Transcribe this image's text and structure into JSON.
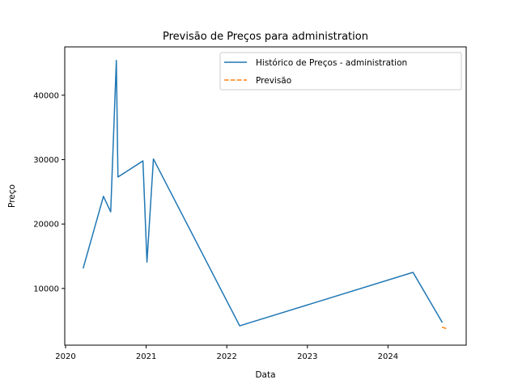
{
  "chart_data": {
    "type": "line",
    "title": "Previsão de Preços para administration",
    "xlabel": "Data",
    "ylabel": "Preço",
    "xlim": [
      2019.99,
      2024.97
    ],
    "ylim": [
      1200,
      47500
    ],
    "x_ticks": [
      {
        "value": 2020,
        "label": "2020"
      },
      {
        "value": 2021,
        "label": "2021"
      },
      {
        "value": 2022,
        "label": "2022"
      },
      {
        "value": 2023,
        "label": "2023"
      },
      {
        "value": 2024,
        "label": "2024"
      }
    ],
    "y_ticks": [
      {
        "value": 10000,
        "label": "10000"
      },
      {
        "value": 20000,
        "label": "20000"
      },
      {
        "value": 30000,
        "label": "30000"
      },
      {
        "value": 40000,
        "label": "40000"
      }
    ],
    "grid": false,
    "legend_position": "top-right",
    "series": [
      {
        "name": "Histórico de Preços - administration",
        "color": "#1f77b4",
        "style": "solid",
        "points": [
          {
            "x": 2020.22,
            "y": 13200
          },
          {
            "x": 2020.47,
            "y": 24300
          },
          {
            "x": 2020.56,
            "y": 21900
          },
          {
            "x": 2020.63,
            "y": 45400
          },
          {
            "x": 2020.65,
            "y": 27300
          },
          {
            "x": 2020.96,
            "y": 29800
          },
          {
            "x": 2021.01,
            "y": 14100
          },
          {
            "x": 2021.09,
            "y": 30100
          },
          {
            "x": 2022.16,
            "y": 4200
          },
          {
            "x": 2024.31,
            "y": 12500
          },
          {
            "x": 2024.67,
            "y": 4800
          }
        ]
      },
      {
        "name": "Previsão",
        "color": "#ff7f0e",
        "style": "dashed",
        "points": [
          {
            "x": 2024.67,
            "y": 4000
          },
          {
            "x": 2024.74,
            "y": 3700
          }
        ]
      }
    ]
  }
}
